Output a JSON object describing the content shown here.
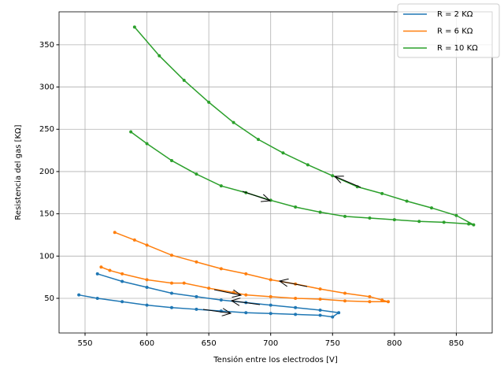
{
  "chart_data": {
    "type": "line",
    "xlabel": "Tensión entre los electrodos [V]",
    "ylabel": "Resistencia del gas [KΩ]",
    "xlim": [
      529,
      879
    ],
    "ylim": [
      9,
      389
    ],
    "xticks": [
      550,
      600,
      650,
      700,
      750,
      800,
      850
    ],
    "yticks": [
      50,
      100,
      150,
      200,
      250,
      300,
      350
    ],
    "grid": true,
    "legend": "upper right",
    "series": [
      {
        "name": "R = 2 KΩ",
        "color": "#1f77b4",
        "x": [
          545,
          560,
          580,
          600,
          620,
          640,
          660,
          680,
          700,
          720,
          740,
          750,
          755,
          740,
          720,
          700,
          680,
          660,
          640,
          620,
          600,
          580,
          560
        ],
        "values": [
          54,
          50,
          46,
          42,
          39,
          37,
          35,
          33,
          32,
          31,
          30,
          28,
          33,
          36,
          39,
          42,
          45,
          48,
          52,
          56,
          63,
          70,
          79
        ]
      },
      {
        "name": "R = 6 KΩ",
        "color": "#ff7f0e",
        "x": [
          563,
          570,
          580,
          600,
          620,
          630,
          650,
          670,
          680,
          700,
          720,
          740,
          760,
          780,
          795,
          790,
          780,
          760,
          740,
          720,
          700,
          680,
          660,
          640,
          620,
          600,
          590,
          574
        ],
        "values": [
          87,
          83,
          79,
          72,
          68,
          68,
          62,
          57,
          54,
          52,
          50,
          49,
          47,
          46,
          46,
          48,
          52,
          56,
          61,
          67,
          72,
          79,
          85,
          93,
          101,
          113,
          119,
          128
        ]
      },
      {
        "name": "R = 10 KΩ",
        "color": "#2ca02c",
        "x": [
          587,
          600,
          620,
          640,
          660,
          680,
          700,
          720,
          740,
          760,
          780,
          800,
          820,
          840,
          860,
          864,
          850,
          830,
          810,
          790,
          770,
          750,
          730,
          710,
          690,
          670,
          650,
          630,
          610,
          590
        ],
        "values": [
          247,
          233,
          213,
          197,
          183,
          175,
          166,
          158,
          152,
          147,
          145,
          143,
          141,
          140,
          138,
          137,
          148,
          157,
          165,
          174,
          182,
          195,
          208,
          222,
          238,
          258,
          282,
          308,
          337,
          371
        ]
      }
    ]
  }
}
